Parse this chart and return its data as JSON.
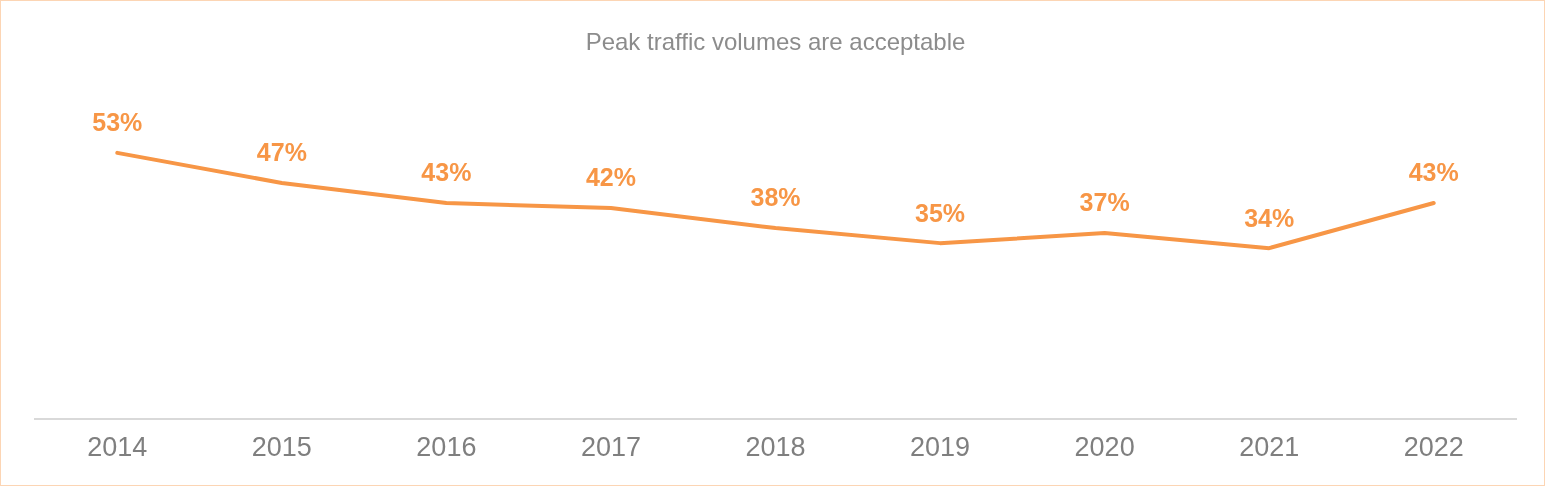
{
  "chart_data": {
    "type": "line",
    "title": "Peak traffic volumes are acceptable",
    "categories": [
      "2014",
      "2015",
      "2016",
      "2017",
      "2018",
      "2019",
      "2020",
      "2021",
      "2022"
    ],
    "series": [
      {
        "color": "#f79646",
        "values": [
          53,
          47,
          43,
          42,
          38,
          35,
          37,
          34,
          43
        ],
        "value_labels": [
          "53%",
          "47%",
          "43%",
          "42%",
          "38%",
          "35%",
          "37%",
          "34%",
          "43%"
        ]
      }
    ],
    "tick_labels": "x",
    "grid": false,
    "legend": false,
    "marker": "none",
    "line_style": "solid"
  }
}
